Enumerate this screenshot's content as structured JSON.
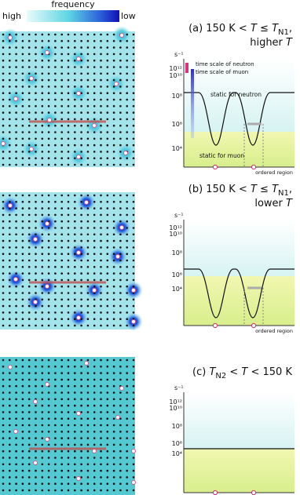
{
  "colorbar": {
    "title": "frequency",
    "high": "high",
    "low": "low"
  },
  "panels": [
    {
      "title": [
        {
          "text": "(a) 150 K < "
        },
        {
          "text": "T",
          "style": "italic"
        },
        {
          "text": " ≤ "
        },
        {
          "text": "T",
          "style": "italic"
        },
        {
          "text": "N1",
          "style": "sub"
        },
        {
          "text": ","
        }
      ],
      "title2": [
        {
          "text": "higher "
        },
        {
          "text": "T",
          "style": "italic"
        }
      ],
      "unit": "s⁻¹",
      "yticks": [
        "10¹²",
        "10¹⁰",
        "10⁸",
        "10⁶",
        "10⁴"
      ],
      "annotations": {
        "time_scale_neutron": "time scale of neutron",
        "time_scale_muon": "time scale of muon",
        "static_neutron": "static for neutron",
        "static_muon": "static for muon",
        "ordered_region": "ordered region"
      }
    },
    {
      "title": [
        {
          "text": "(b) 150 K < "
        },
        {
          "text": "T",
          "style": "italic"
        },
        {
          "text": " ≤ "
        },
        {
          "text": "T",
          "style": "italic"
        },
        {
          "text": "N1",
          "style": "sub"
        },
        {
          "text": ","
        }
      ],
      "title2": [
        {
          "text": "lower "
        },
        {
          "text": "T",
          "style": "italic"
        }
      ],
      "unit": "s⁻¹",
      "yticks": [
        "10¹²",
        "10¹⁰",
        "10⁸",
        "10⁶",
        "10⁴"
      ],
      "annotations": {
        "ordered_region": "ordered region"
      }
    },
    {
      "title": [
        {
          "text": "(c) "
        },
        {
          "text": "T",
          "style": "italic"
        },
        {
          "text": "N2",
          "style": "sub"
        },
        {
          "text": " < "
        },
        {
          "text": "T",
          "style": "italic"
        },
        {
          "text": " < 150 K"
        }
      ],
      "unit": "s⁻¹",
      "yticks": [
        "10¹²",
        "10¹⁰",
        "10⁸",
        "10⁶",
        "10⁴"
      ],
      "annotations": {}
    }
  ]
}
